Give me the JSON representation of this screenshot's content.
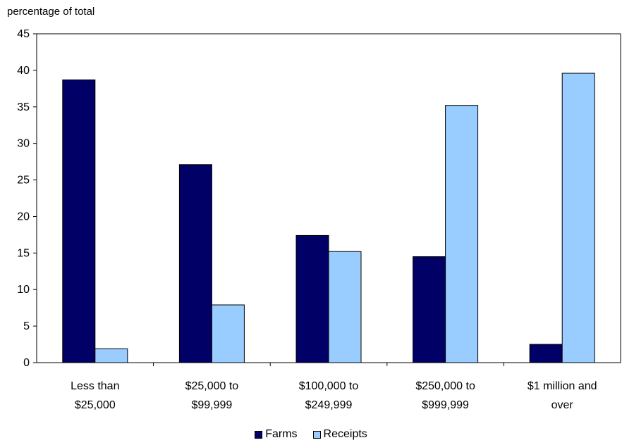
{
  "chart_data": {
    "type": "bar",
    "ylabel": "percentage of total",
    "ylim": [
      0,
      45
    ],
    "yticks": [
      0,
      5,
      10,
      15,
      20,
      25,
      30,
      35,
      40,
      45
    ],
    "categories": [
      [
        "Less than",
        "$25,000"
      ],
      [
        "$25,000 to",
        "$99,999"
      ],
      [
        "$100,000 to",
        "$249,999"
      ],
      [
        "$250,000 to",
        "$999,999"
      ],
      [
        "$1 million and",
        "over"
      ]
    ],
    "series": [
      {
        "name": "Farms",
        "color": "#000066",
        "values": [
          38.7,
          27.1,
          17.4,
          14.5,
          2.5
        ]
      },
      {
        "name": "Receipts",
        "color": "#99ccff",
        "values": [
          1.9,
          7.9,
          15.2,
          35.2,
          39.6
        ]
      }
    ],
    "grid": false,
    "legend": "bottom"
  }
}
